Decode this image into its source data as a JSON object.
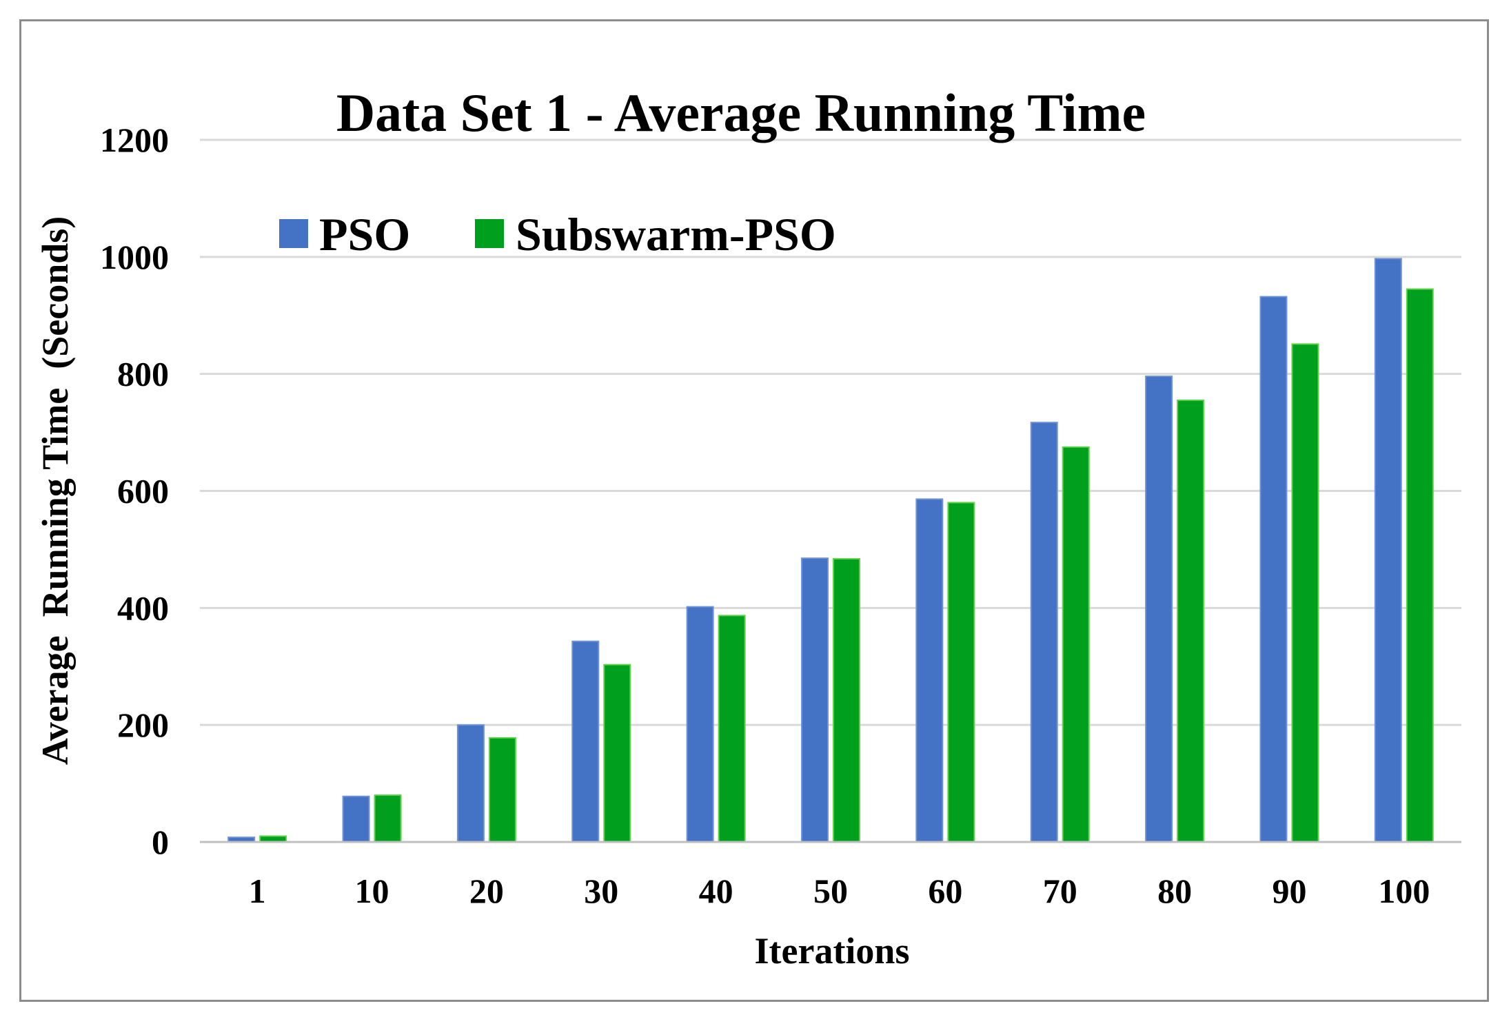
{
  "chart_data": {
    "type": "bar",
    "title": "Data Set 1 - Average Running Time",
    "xlabel": "Iterations",
    "ylabel": "Average  Running Time  (Seconds)",
    "categories": [
      "1",
      "10",
      "20",
      "30",
      "40",
      "50",
      "60",
      "70",
      "80",
      "90",
      "100"
    ],
    "series": [
      {
        "name": "PSO",
        "color": "#4472c4",
        "values": [
          8,
          78,
          200,
          343,
          402,
          485,
          586,
          717,
          796,
          932,
          997
        ]
      },
      {
        "name": "Subswarm-PSO",
        "color": "#00a01e",
        "values": [
          10,
          80,
          178,
          303,
          387,
          484,
          580,
          675,
          755,
          851,
          945
        ]
      }
    ],
    "ylim": [
      0,
      1200
    ],
    "yticks": [
      0,
      200,
      400,
      600,
      800,
      1000,
      1200
    ],
    "grid": true,
    "legend_position": "top-left"
  }
}
